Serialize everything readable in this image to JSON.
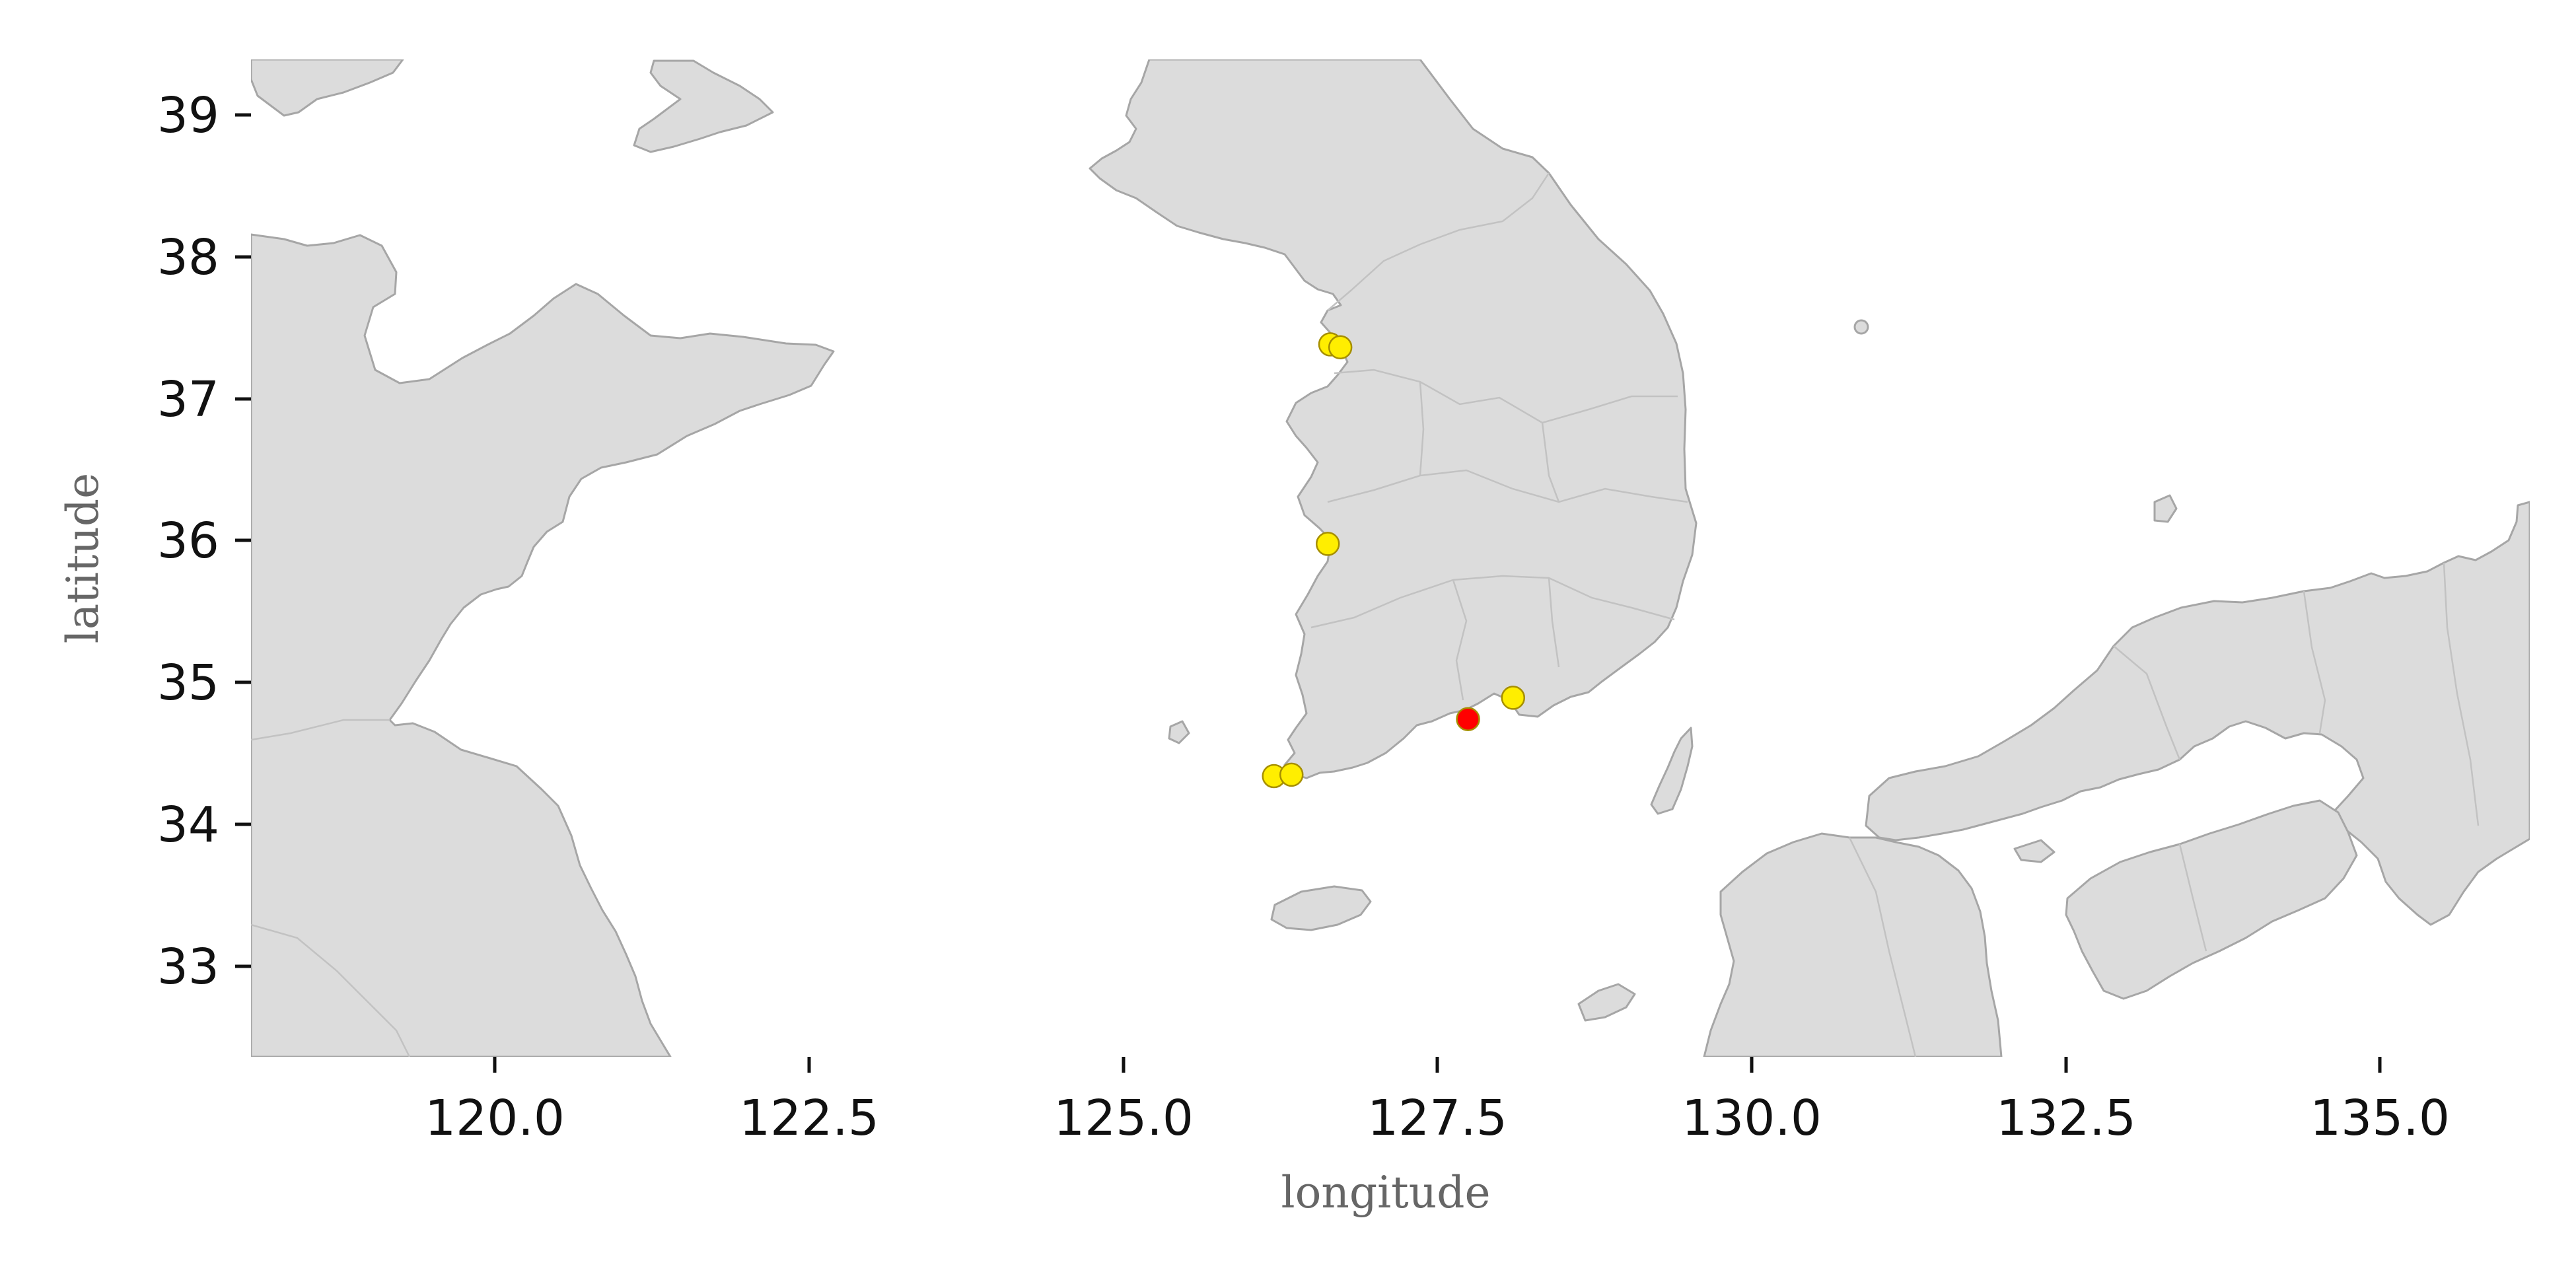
{
  "chart_data": {
    "type": "scatter",
    "title": "",
    "xlabel": "longitude",
    "ylabel": "latitude",
    "xlim": [
      118.0,
      136.2
    ],
    "ylim": [
      32.4,
      39.4
    ],
    "x_ticks": [
      "120.0",
      "122.5",
      "125.0",
      "127.5",
      "130.0",
      "132.5",
      "135.0"
    ],
    "y_ticks": [
      "33",
      "34",
      "35",
      "36",
      "37",
      "38",
      "39"
    ],
    "grid": false,
    "legend": "none",
    "basemap": "East Asia coastline (China, Korea, Japan) with administrative boundaries",
    "colors": {
      "land": "#dcdcdc",
      "coast": "#a6a6a6",
      "highlight": "#ff0000",
      "stations": "#ffee00"
    },
    "series": [
      {
        "color": "#ffee00",
        "points": [
          {
            "lon": 126.62,
            "lat": 37.4
          },
          {
            "lon": 126.7,
            "lat": 37.38
          },
          {
            "lon": 126.6,
            "lat": 36.0
          },
          {
            "lon": 128.08,
            "lat": 34.92
          },
          {
            "lon": 126.17,
            "lat": 34.37
          },
          {
            "lon": 126.31,
            "lat": 34.38
          }
        ]
      },
      {
        "color": "#ff0000",
        "points": [
          {
            "lon": 127.72,
            "lat": 34.77
          }
        ]
      }
    ]
  }
}
